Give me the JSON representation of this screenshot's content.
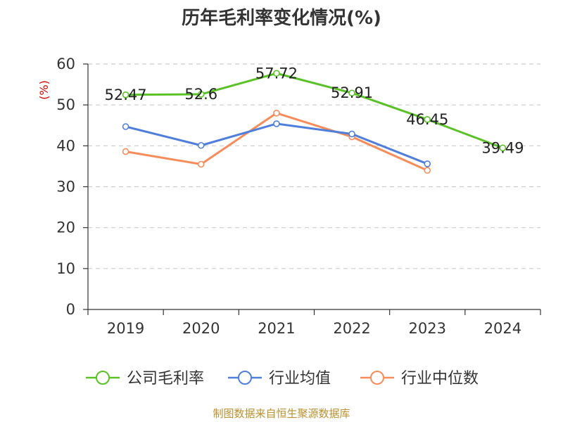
{
  "chart_data": {
    "type": "line",
    "title": "历年毛利率变化情况(%)",
    "ylabel": "(%)",
    "xlabel": "",
    "categories": [
      "2019",
      "2020",
      "2021",
      "2022",
      "2023",
      "2024"
    ],
    "ylim": [
      0,
      60
    ],
    "yticks": [
      0,
      10,
      20,
      30,
      40,
      50,
      60
    ],
    "grid": "horizontal-dashed",
    "legend": "bottom",
    "series": [
      {
        "name": "公司毛利率",
        "color": "#5ac127",
        "values": [
          52.47,
          52.6,
          57.72,
          52.91,
          46.45,
          39.49
        ],
        "labels": [
          "52.47",
          "52.6",
          "57.72",
          "52.91",
          "46.45",
          "39.49"
        ]
      },
      {
        "name": "行业均值",
        "color": "#4f7fdb",
        "values": [
          44.7,
          40.1,
          45.4,
          42.9,
          35.6,
          null
        ]
      },
      {
        "name": "行业中位数",
        "color": "#f58c5a",
        "values": [
          38.6,
          35.5,
          48.0,
          42.2,
          34.0,
          null
        ]
      }
    ]
  },
  "source": "制图数据来自恒生聚源数据库"
}
